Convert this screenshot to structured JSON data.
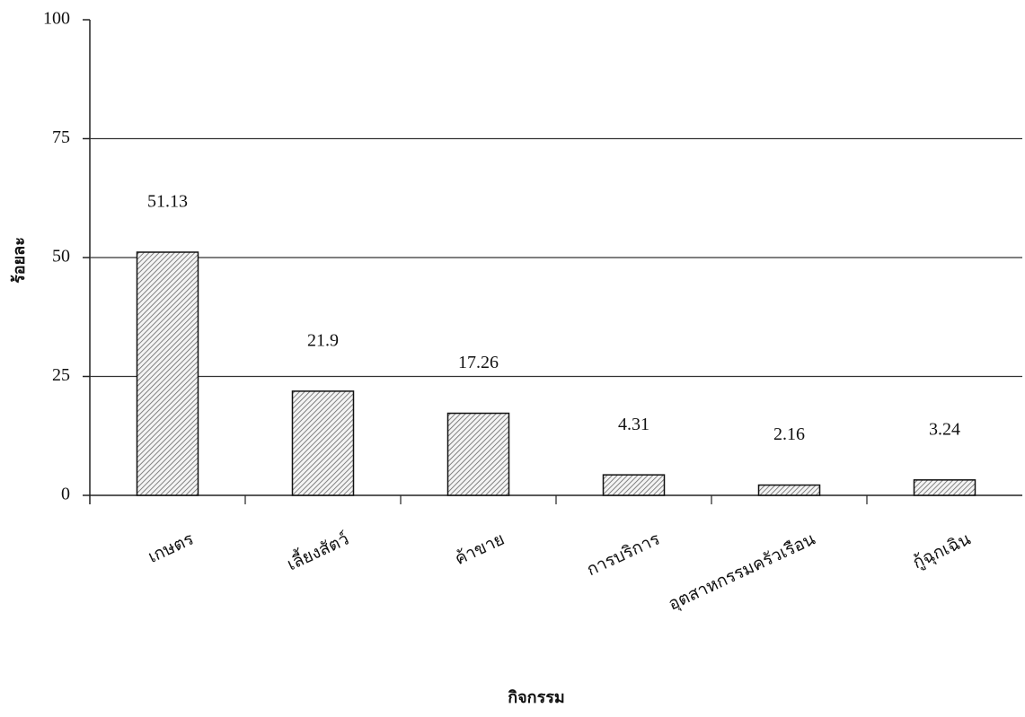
{
  "chart_data": {
    "type": "bar",
    "x_label": "กิจกรรม",
    "y_label": "ร้อยละ",
    "categories": [
      "เกษตร",
      "เลี้ยงสัตว์",
      "ค้าขาย",
      "การบริการ",
      "อุตสาหกรรมครัวเรือน",
      "กู้ฉุกเฉิน"
    ],
    "values": [
      51.13,
      21.9,
      17.26,
      4.31,
      2.16,
      3.24
    ],
    "color": "#666666",
    "ylim": [
      0,
      100
    ],
    "yticks": [
      0,
      25,
      50,
      75,
      100
    ],
    "grid": true
  }
}
